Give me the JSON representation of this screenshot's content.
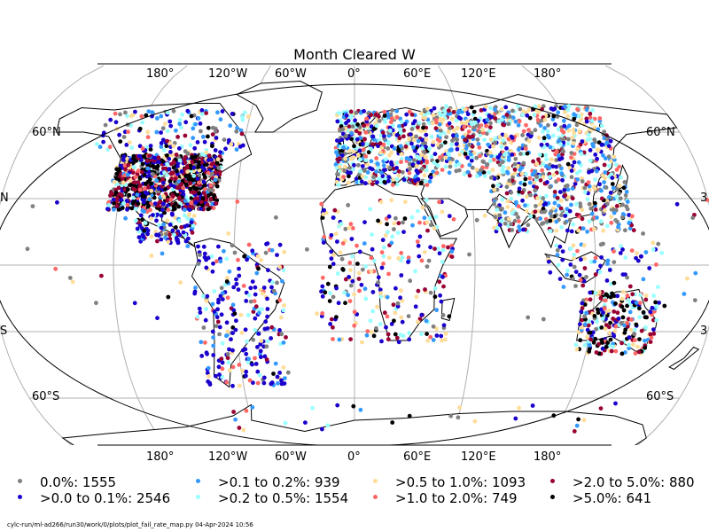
{
  "title": "Month Cleared W",
  "colors": {
    "ocean": "#ffffff",
    "land_outline": "#000000",
    "grid": "#b0b0b0"
  },
  "axis_labels": {
    "top_lon": [
      "180°",
      "120°W",
      "60°W",
      "0°",
      "60°E",
      "120°E",
      "180°"
    ],
    "bottom_lon": [
      "180°",
      "120°W",
      "60°W",
      "0°",
      "60°E",
      "120°E",
      "180°"
    ],
    "left_lat": [
      "60°N",
      "N",
      "S",
      "60°S"
    ],
    "right_lat": [
      "60°N",
      "3",
      "3",
      "60°S"
    ]
  },
  "legend": [
    {
      "label": "0.0%: 1555",
      "color": "#808080"
    },
    {
      "label": ">0.0 to 0.1%: 2546",
      "color": "#1a00cc"
    },
    {
      "label": ">0.1 to 0.2%: 939",
      "color": "#3399ff"
    },
    {
      "label": ">0.2 to 0.5%: 1554",
      "color": "#99ffff"
    },
    {
      "label": ">0.5 to 1.0%: 1093",
      "color": "#ffdd99"
    },
    {
      "label": ">1.0 to 2.0%: 749",
      "color": "#ff6666"
    },
    {
      "label": ">2.0 to 5.0%: 880",
      "color": "#990033"
    },
    {
      "label": ">5.0%: 641",
      "color": "#000000"
    }
  ],
  "footer": "cylc-run/ml-ad266/run30/work/0/plots/plot_fail_rate_map.py   04-Apr-2024 10:56"
}
